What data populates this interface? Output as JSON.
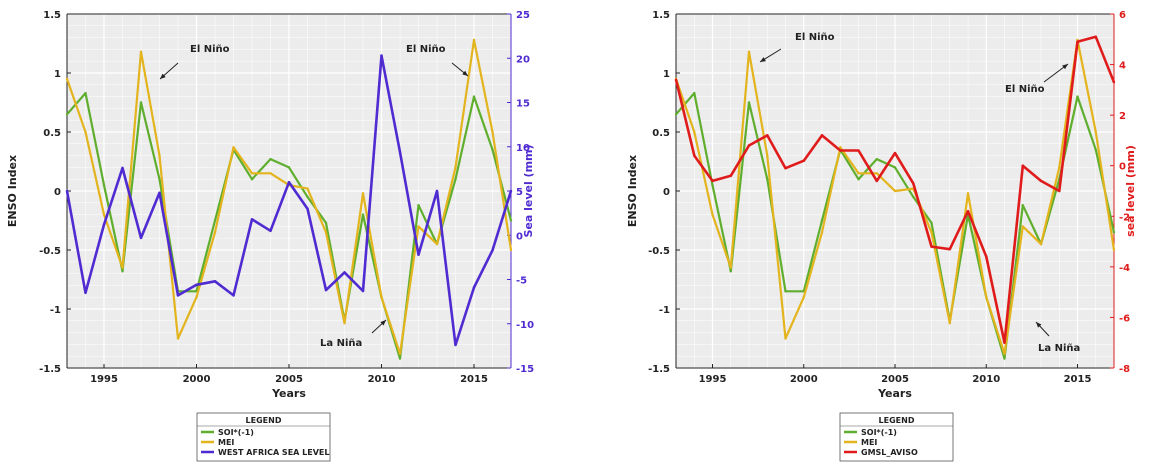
{
  "chart_data": [
    {
      "type": "line",
      "xlabel": "Years",
      "ylabel_left": "ENSO Index",
      "ylabel_right": "Sea level (mm)",
      "xlim": [
        1993,
        2017
      ],
      "ylim_left": [
        -1.5,
        1.5
      ],
      "ylim_right": [
        -15,
        25
      ],
      "x_ticks": [
        "1995",
        "2000",
        "2005",
        "2010",
        "2015"
      ],
      "y_ticks_left": [
        "-1.5",
        "-1",
        "-0.5",
        "0",
        "0.5",
        "1",
        "1.5"
      ],
      "y_ticks_right": [
        "-15",
        "-10",
        "-5",
        "0",
        "5",
        "10",
        "15",
        "20",
        "25"
      ],
      "grid": true,
      "x": [
        1993,
        1994,
        1995,
        1996,
        1997,
        1998,
        1999,
        2000,
        2001,
        2002,
        2003,
        2004,
        2005,
        2006,
        2007,
        2008,
        2009,
        2010,
        2011,
        2012,
        2013,
        2014,
        2015,
        2016,
        2017
      ],
      "series": [
        {
          "name": "SOI*(-1)",
          "color": "#5fae2e",
          "axis": "left",
          "values": [
            0.65,
            0.83,
            0.05,
            -0.68,
            0.75,
            0.1,
            -0.85,
            -0.85,
            -0.25,
            0.35,
            0.1,
            0.27,
            0.2,
            -0.05,
            -0.27,
            -1.1,
            -0.2,
            -0.9,
            -1.42,
            -0.12,
            -0.45,
            0.1,
            0.8,
            0.35,
            -0.25
          ]
        },
        {
          "name": "MEI",
          "color": "#e3b41d",
          "axis": "left",
          "values": [
            0.95,
            0.5,
            -0.2,
            -0.65,
            1.18,
            0.3,
            -1.25,
            -0.9,
            -0.35,
            0.37,
            0.15,
            0.15,
            0.05,
            0.02,
            -0.35,
            -1.12,
            -0.02,
            -0.9,
            -1.38,
            -0.3,
            -0.45,
            0.2,
            1.28,
            0.5,
            -0.5
          ]
        },
        {
          "name": "WEST AFRICA SEA LEVEL",
          "color": "#4f2bd1",
          "axis": "right",
          "values": [
            5.0,
            -6.5,
            1.2,
            7.6,
            -0.3,
            4.8,
            -6.8,
            -5.6,
            -5.2,
            -6.8,
            1.8,
            0.5,
            6.0,
            3.0,
            -6.2,
            -4.2,
            -6.3,
            20.3,
            9.4,
            -2.2,
            5.0,
            -12.4,
            -5.9,
            -1.7,
            5.0
          ]
        }
      ],
      "annotations": [
        "El Niño",
        "El Niño",
        "La Niña"
      ],
      "legend": {
        "title": "LEGEND",
        "placement": "below"
      }
    },
    {
      "type": "line",
      "xlabel": "Years",
      "ylabel_left": "ENSO Index",
      "ylabel_right": "sea level (mm)",
      "xlim": [
        1993,
        2017
      ],
      "ylim_left": [
        -1.5,
        1.5
      ],
      "ylim_right": [
        -8,
        6
      ],
      "x_ticks": [
        "1995",
        "2000",
        "2005",
        "2010",
        "2015"
      ],
      "y_ticks_left": [
        "-1.5",
        "-1",
        "-0.5",
        "0",
        "0.5",
        "1",
        "1.5"
      ],
      "y_ticks_right": [
        "-8",
        "-6",
        "-4",
        "-2",
        "0",
        "2",
        "4",
        "6"
      ],
      "grid": true,
      "x": [
        1993,
        1994,
        1995,
        1996,
        1997,
        1998,
        1999,
        2000,
        2001,
        2002,
        2003,
        2004,
        2005,
        2006,
        2007,
        2008,
        2009,
        2010,
        2011,
        2012,
        2013,
        2014,
        2015,
        2016,
        2017
      ],
      "series": [
        {
          "name": "SOI*(-1)",
          "color": "#5fae2e",
          "axis": "left",
          "values": [
            0.65,
            0.83,
            0.05,
            -0.68,
            0.75,
            0.1,
            -0.85,
            -0.85,
            -0.25,
            0.35,
            0.1,
            0.27,
            0.2,
            -0.05,
            -0.27,
            -1.1,
            -0.2,
            -0.9,
            -1.42,
            -0.12,
            -0.45,
            0.1,
            0.8,
            0.35,
            -0.35
          ]
        },
        {
          "name": "MEI",
          "color": "#e3b41d",
          "axis": "left",
          "values": [
            0.95,
            0.5,
            -0.2,
            -0.65,
            1.18,
            0.3,
            -1.25,
            -0.9,
            -0.35,
            0.37,
            0.15,
            0.15,
            0.0,
            0.02,
            -0.35,
            -1.12,
            -0.02,
            -0.9,
            -1.38,
            -0.3,
            -0.45,
            0.2,
            1.28,
            0.5,
            -0.5
          ]
        },
        {
          "name": "GMSL_AVISO",
          "color": "#e01b1b",
          "axis": "right",
          "values": [
            3.4,
            0.4,
            -0.6,
            -0.4,
            0.8,
            1.2,
            -0.1,
            0.2,
            1.2,
            0.6,
            0.6,
            -0.6,
            0.5,
            -0.7,
            -3.2,
            -3.3,
            -1.8,
            -3.6,
            -7.0,
            0.0,
            -0.6,
            -1.0,
            4.9,
            5.1,
            3.3
          ]
        }
      ],
      "annotations": [
        "El Niño",
        "El Niño",
        "La Niña"
      ],
      "legend": {
        "title": "LEGEND",
        "placement": "below"
      }
    }
  ]
}
